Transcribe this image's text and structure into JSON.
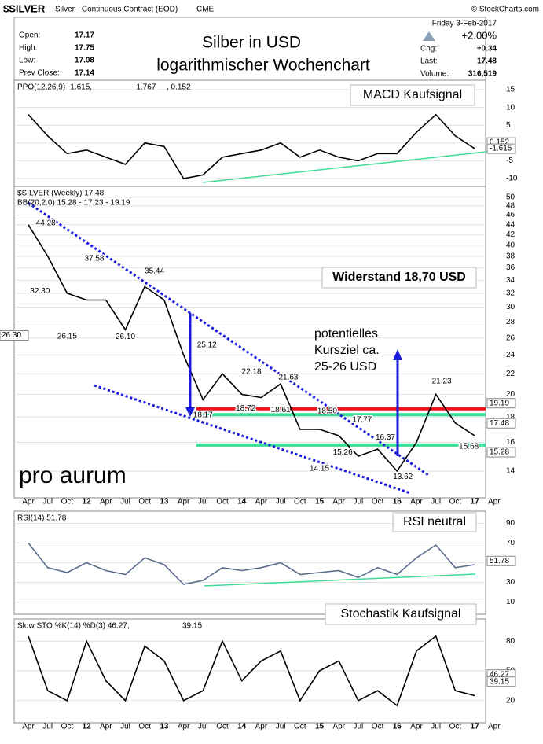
{
  "header": {
    "symbol": "$SILVER",
    "name": "Silver - Continuous Contract (EOD)",
    "exchange": "CME",
    "credit": "© StockCharts.com",
    "date": "Friday 3-Feb-2017",
    "change_pct": "+2.00%",
    "left": [
      [
        "Open:",
        "17.17"
      ],
      [
        "High:",
        "17.75"
      ],
      [
        "Low:",
        "17.08"
      ],
      [
        "Prev Close:",
        "17.14"
      ]
    ],
    "right": [
      [
        "Chg:",
        "+0.34"
      ],
      [
        "Last:",
        "17.48"
      ],
      [
        "Volume:",
        "316,519"
      ]
    ]
  },
  "annotations": {
    "title": "Silber in USD",
    "subtitle": "logarithmischer Wochenchart",
    "macd": "MACD Kaufsignal",
    "resistance": "Widerstand 18,70 USD",
    "target": [
      "potentielles",
      "Kursziel ca.",
      "25-26 USD"
    ],
    "logo": "pro aurum",
    "rsi": "RSI neutral",
    "sto": "Stochastik Kaufsignal"
  },
  "chart_data": [
    {
      "type": "line",
      "legend": [
        "PPO(12,26,9) -1.615, ",
        "-1.767",
        ", 0.152"
      ],
      "color": "#000000",
      "ylim": [
        -12,
        17
      ],
      "yticks": [
        -10,
        -5,
        0,
        5,
        10,
        15
      ],
      "values": [
        8,
        2,
        -3,
        -2,
        -4,
        -6,
        0,
        -1,
        -10,
        -9,
        -4,
        -3,
        -2,
        0,
        -4,
        -2,
        -4,
        -5,
        -3,
        -3,
        3,
        8,
        2,
        -1.6,
        null
      ],
      "last_labels": [
        0.152,
        -1.615
      ]
    },
    {
      "type": "line",
      "log": true,
      "legend": [
        "$SILVER (Weekly) 17.48",
        "BB(20,2.0) 15.28 - 17.23 - 19.19"
      ],
      "color": "#000000",
      "ylim": [
        12.5,
        52
      ],
      "yticks": [
        14,
        16,
        18,
        20,
        22,
        24,
        26,
        28,
        30,
        32,
        34,
        36,
        38,
        40,
        42,
        44,
        46,
        48,
        50
      ],
      "categories": [
        "Apr",
        "Jul",
        "Oct",
        "12",
        "Apr",
        "Jul",
        "Oct",
        "13",
        "Apr",
        "Jul",
        "Oct",
        "14",
        "Apr",
        "Jul",
        "Oct",
        "15",
        "Apr",
        "Jul",
        "Oct",
        "16",
        "Apr",
        "Jul",
        "Oct",
        "17",
        "Apr"
      ],
      "values": [
        44,
        38,
        32,
        31,
        31,
        27,
        33,
        31,
        24,
        19.5,
        22,
        20,
        19.7,
        21,
        17,
        17,
        16.5,
        15,
        15.5,
        14,
        16,
        20,
        17.5,
        16.5,
        null
      ],
      "point_labels": [
        44.28,
        37.58,
        35.44,
        {
          "value": 32.3,
          "label": "32.30"
        },
        26.15,
        {
          "value": 26.1,
          "label": "26.10"
        },
        25.12,
        22.18,
        21.63,
        18.17,
        18.72,
        18.61,
        {
          "value": 18.5,
          "label": "18.50"
        },
        17.77,
        16.37,
        15.26,
        14.15,
        13.62,
        21.23,
        15.68
      ],
      "hlines": [
        {
          "value": 18.7,
          "color": "#e8141c"
        },
        {
          "value": 18.2,
          "color": "#3ddc97"
        },
        {
          "value": 15.8,
          "color": "#3ddc97"
        }
      ],
      "last_labels": [
        {
          "value": 26.3,
          "label": "26.30"
        },
        19.19,
        17.48,
        15.28
      ]
    },
    {
      "type": "line",
      "legend": [
        "RSI(14) 51.78"
      ],
      "color": "#5a6b8c",
      "ylim": [
        0,
        100
      ],
      "yticks": [
        10,
        30,
        50,
        70,
        90
      ],
      "values": [
        70,
        45,
        40,
        50,
        42,
        38,
        55,
        48,
        28,
        32,
        45,
        42,
        45,
        50,
        38,
        40,
        42,
        35,
        45,
        38,
        55,
        68,
        45,
        48,
        null
      ],
      "last_labels": [
        51.78
      ]
    },
    {
      "type": "line",
      "legend": [
        "Slow STO %K(14) %D(3) 46.27, ",
        "39.15"
      ],
      "color": "#000000",
      "ylim": [
        0,
        100
      ],
      "yticks": [
        20,
        50,
        80
      ],
      "categories": [
        "Apr",
        "Jul",
        "Oct",
        "12",
        "Apr",
        "Jul",
        "Oct",
        "13",
        "Apr",
        "Jul",
        "Oct",
        "14",
        "Apr",
        "Jul",
        "Oct",
        "15",
        "Apr",
        "Jul",
        "Oct",
        "16",
        "Apr",
        "Jul",
        "Oct",
        "17",
        "Apr"
      ],
      "values": [
        85,
        30,
        20,
        80,
        40,
        20,
        75,
        60,
        20,
        30,
        80,
        40,
        60,
        70,
        20,
        50,
        60,
        20,
        30,
        15,
        70,
        85,
        30,
        25,
        null
      ],
      "last_labels": [
        46.27,
        39.15
      ]
    }
  ]
}
